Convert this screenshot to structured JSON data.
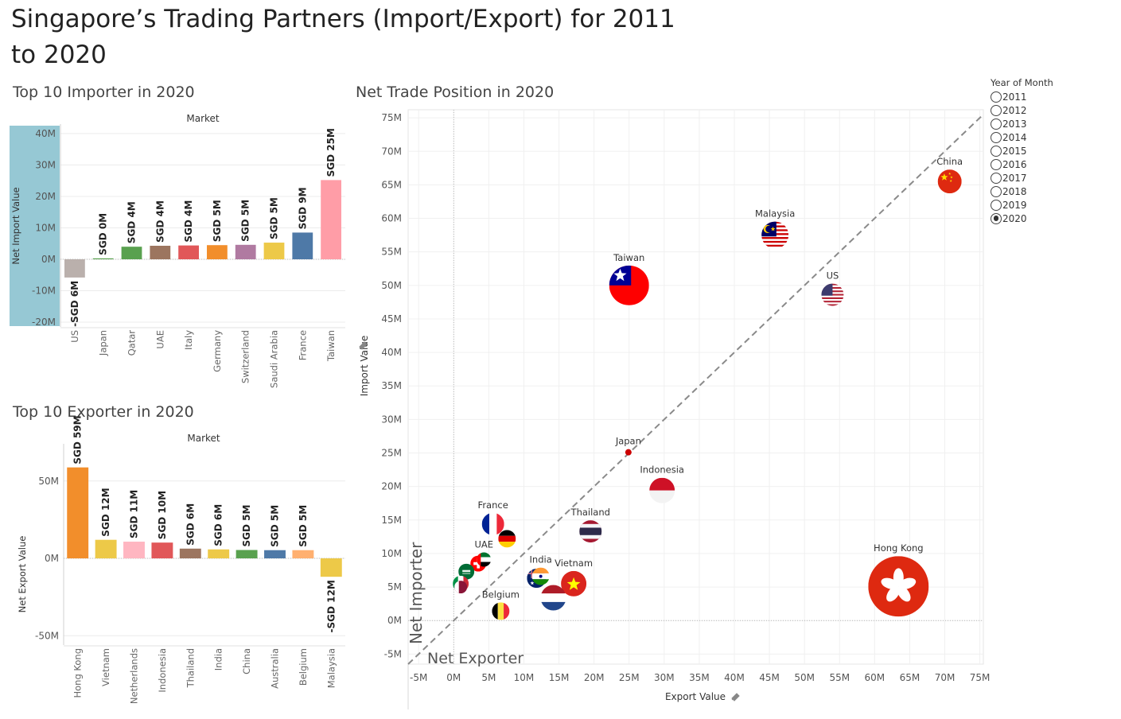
{
  "page": {
    "title": "Singapore’s Trading Partners (Import/Export) for 2011 to 2020"
  },
  "importer_panel": {
    "title": "Top 10 Importer in 2020",
    "header": "Market",
    "ylabel": "Net Import Value"
  },
  "exporter_panel": {
    "title": "Top 10 Exporter in 2020",
    "header": "Market",
    "ylabel": "Net Export Value"
  },
  "scatter_panel": {
    "title": "Net Trade Position in 2020",
    "net_importer_label": "Net Importer",
    "net_exporter_label": "Net Exporter"
  },
  "legend": {
    "title": "Year of Month",
    "options": [
      {
        "label": "2011",
        "selected": false
      },
      {
        "label": "2012",
        "selected": false
      },
      {
        "label": "2013",
        "selected": false
      },
      {
        "label": "2014",
        "selected": false
      },
      {
        "label": "2015",
        "selected": false
      },
      {
        "label": "2016",
        "selected": false
      },
      {
        "label": "2017",
        "selected": false
      },
      {
        "label": "2018",
        "selected": false
      },
      {
        "label": "2019",
        "selected": false
      },
      {
        "label": "2020",
        "selected": true
      }
    ]
  },
  "chart_data": [
    {
      "type": "bar",
      "title": "Top 10 Importer in 2020",
      "ylabel": "Net Import Value",
      "categories": [
        "US",
        "Japan",
        "Qatar",
        "UAE",
        "Italy",
        "Germany",
        "Switzerland",
        "Saudi Arabia",
        "France",
        "Taiwan"
      ],
      "values": [
        -5.8,
        0.3,
        4.0,
        4.3,
        4.4,
        4.5,
        4.6,
        5.3,
        8.5,
        25.2
      ],
      "data_labels": [
        "-SGD 6M",
        "SGD 0M",
        "SGD 4M",
        "SGD 4M",
        "SGD 4M",
        "SGD 5M",
        "SGD 5M",
        "SGD 5M",
        "SGD 9M",
        "SGD 25M"
      ],
      "colors": [
        "#bab0ac",
        "#59a14f",
        "#59a14f",
        "#9c755f",
        "#e15759",
        "#f28e2b",
        "#b07aa1",
        "#edc948",
        "#4e79a7",
        "#ff9da7"
      ],
      "ylim": [
        -21,
        42
      ],
      "yticks": [
        -20,
        -10,
        0,
        10,
        20,
        30,
        40
      ],
      "ytick_labels": [
        "-20M",
        "-10M",
        "0M",
        "10M",
        "20M",
        "30M",
        "40M"
      ]
    },
    {
      "type": "bar",
      "title": "Top 10 Exporter in 2020",
      "ylabel": "Net Export Value",
      "categories": [
        "Hong Kong",
        "Vietnam",
        "Netherlands",
        "Indonesia",
        "Thailand",
        "India",
        "China",
        "Australia",
        "Belgium",
        "Malaysia"
      ],
      "values": [
        58.8,
        12.0,
        10.8,
        10.2,
        6.3,
        5.8,
        5.4,
        5.3,
        5.3,
        -11.9
      ],
      "data_labels": [
        "SGD 59M",
        "SGD 12M",
        "SGD 11M",
        "SGD 10M",
        "SGD 6M",
        "SGD 6M",
        "SGD 5M",
        "SGD 5M",
        "SGD 5M",
        "-SGD 12M"
      ],
      "colors": [
        "#f28e2b",
        "#edc948",
        "#ffb6c1",
        "#e15759",
        "#9c755f",
        "#edc948",
        "#59a14f",
        "#4e79a7",
        "#ffb070",
        "#edc948"
      ],
      "ylim": [
        -55,
        72
      ],
      "yticks": [
        -50,
        0,
        50
      ],
      "ytick_labels": [
        "-50M",
        "0M",
        "50M"
      ]
    },
    {
      "type": "scatter",
      "title": "Net Trade Position in 2020",
      "xlabel": "Export Value",
      "ylabel": "Import Value",
      "xlim": [
        -6.5,
        75.5
      ],
      "ylim": [
        -6.5,
        76.2
      ],
      "xticks": [
        -5,
        0,
        5,
        10,
        15,
        20,
        25,
        30,
        35,
        40,
        45,
        50,
        55,
        60,
        65,
        70,
        75
      ],
      "xtick_labels": [
        "-5M",
        "0M",
        "5M",
        "10M",
        "15M",
        "20M",
        "25M",
        "30M",
        "35M",
        "40M",
        "45M",
        "50M",
        "55M",
        "60M",
        "65M",
        "70M",
        "75M"
      ],
      "yticks": [
        -5,
        0,
        5,
        10,
        15,
        20,
        25,
        30,
        35,
        40,
        45,
        50,
        55,
        60,
        65,
        70,
        75
      ],
      "ytick_labels": [
        "-5M",
        "0M",
        "5M",
        "10M",
        "15M",
        "20M",
        "25M",
        "30M",
        "35M",
        "40M",
        "45M",
        "50M",
        "55M",
        "60M",
        "65M",
        "70M",
        "75M"
      ],
      "reference_line": "y = x",
      "points": [
        {
          "name": "China",
          "x": 70.7,
          "y": 65.5,
          "size": 15,
          "flag": "china-flag",
          "label": "China"
        },
        {
          "name": "Malaysia",
          "x": 45.8,
          "y": 57.5,
          "size": 17,
          "flag": "malaysia-flag",
          "label": "Malaysia"
        },
        {
          "name": "Taiwan",
          "x": 25.0,
          "y": 50.0,
          "size": 25,
          "flag": "taiwan-flag",
          "label": "Taiwan"
        },
        {
          "name": "US",
          "x": 54.0,
          "y": 48.6,
          "size": 14,
          "flag": "us-flag",
          "label": "US"
        },
        {
          "name": "Japan",
          "x": 24.9,
          "y": 25.1,
          "size": 4,
          "flag": "japan-dot",
          "label": "Japan"
        },
        {
          "name": "Indonesia",
          "x": 29.7,
          "y": 19.4,
          "size": 16,
          "flag": "indonesia-flag",
          "label": "Indonesia"
        },
        {
          "name": "Thailand",
          "x": 19.5,
          "y": 13.3,
          "size": 14,
          "flag": "thailand-flag",
          "label": "Thailand"
        },
        {
          "name": "France",
          "x": 5.6,
          "y": 14.4,
          "size": 14,
          "flag": "france-flag",
          "label": "France"
        },
        {
          "name": "Germany",
          "x": 7.6,
          "y": 12.2,
          "size": 11,
          "flag": "germany-flag",
          "label": ""
        },
        {
          "name": "UAE",
          "x": 4.3,
          "y": 9.1,
          "size": 9,
          "flag": "uae-flag",
          "label": "UAE"
        },
        {
          "name": "Switzerland",
          "x": 3.5,
          "y": 8.5,
          "size": 10,
          "flag": "switzerland-flag",
          "label": ""
        },
        {
          "name": "Saudi Arabia",
          "x": 1.8,
          "y": 7.3,
          "size": 10,
          "flag": "saudi-flag",
          "label": ""
        },
        {
          "name": "Italy",
          "x": 1.0,
          "y": 5.5,
          "size": 10,
          "flag": "italy-flag",
          "label": ""
        },
        {
          "name": "Qatar",
          "x": 1.0,
          "y": 5.0,
          "size": 8,
          "flag": "qatar-flag",
          "label": ""
        },
        {
          "name": "India",
          "x": 12.4,
          "y": 6.6,
          "size": 11,
          "flag": "india-flag",
          "label": "India"
        },
        {
          "name": "Australia",
          "x": 11.8,
          "y": 6.3,
          "size": 12,
          "flag": "australia-flag",
          "label": ""
        },
        {
          "name": "Vietnam",
          "x": 17.1,
          "y": 5.5,
          "size": 16,
          "flag": "vietnam-flag",
          "label": "Vietnam"
        },
        {
          "name": "Netherlands",
          "x": 14.2,
          "y": 3.4,
          "size": 16,
          "flag": "netherlands-flag",
          "label": ""
        },
        {
          "name": "Belgium",
          "x": 6.7,
          "y": 1.4,
          "size": 11,
          "flag": "belgium-flag",
          "label": "Belgium"
        },
        {
          "name": "Hong Kong",
          "x": 63.4,
          "y": 5.1,
          "size": 38,
          "flag": "hongkong-flag",
          "label": "Hong Kong"
        }
      ]
    }
  ]
}
